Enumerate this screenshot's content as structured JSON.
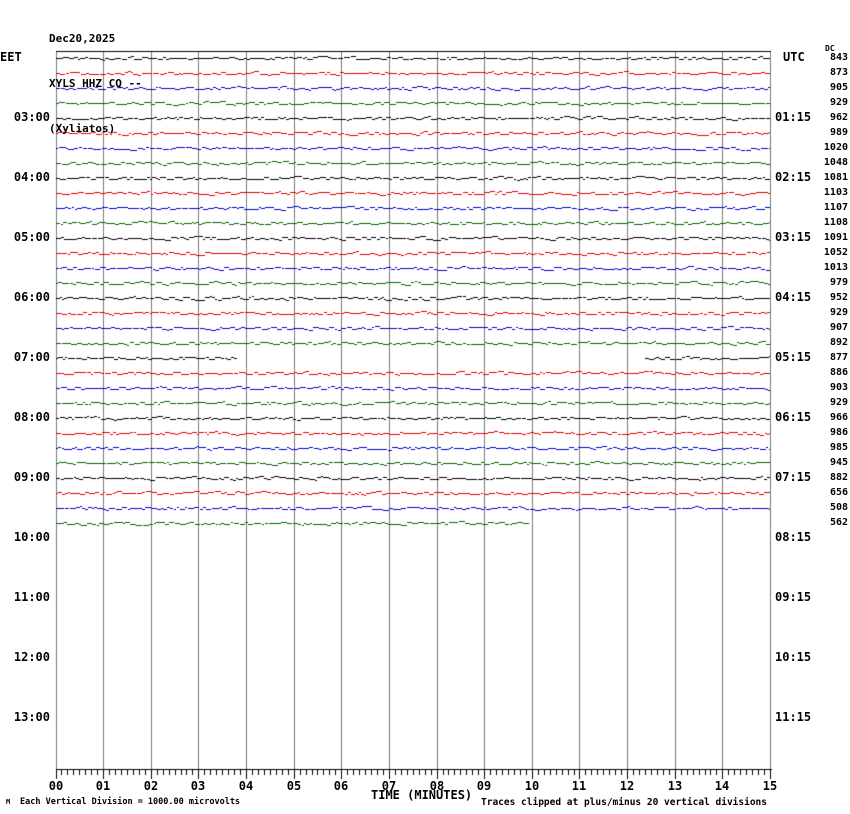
{
  "title": {
    "line1": "Dec20,2025",
    "line2": "XYLS HHZ CQ --",
    "line3": "(Xyliatos)"
  },
  "axes": {
    "left_timezone_label": "EET",
    "right_timezone_label": "UTC",
    "dc_header": "DC",
    "x_axis_label": "TIME (MINUTES)",
    "x_tick_labels": [
      "00",
      "01",
      "02",
      "03",
      "04",
      "05",
      "06",
      "07",
      "08",
      "09",
      "10",
      "11",
      "12",
      "13",
      "14",
      "15"
    ]
  },
  "left_time_labels": [
    {
      "text": "03:00",
      "row": 4
    },
    {
      "text": "04:00",
      "row": 8
    },
    {
      "text": "05:00",
      "row": 12
    },
    {
      "text": "06:00",
      "row": 16
    },
    {
      "text": "07:00",
      "row": 20
    },
    {
      "text": "08:00",
      "row": 24
    },
    {
      "text": "09:00",
      "row": 28
    },
    {
      "text": "10:00",
      "row": 32
    },
    {
      "text": "11:00",
      "row": 36
    },
    {
      "text": "12:00",
      "row": 40
    },
    {
      "text": "13:00",
      "row": 44
    }
  ],
  "right_time_labels": [
    {
      "text": "01:15",
      "row": 4
    },
    {
      "text": "02:15",
      "row": 8
    },
    {
      "text": "03:15",
      "row": 12
    },
    {
      "text": "04:15",
      "row": 16
    },
    {
      "text": "05:15",
      "row": 20
    },
    {
      "text": "06:15",
      "row": 24
    },
    {
      "text": "07:15",
      "row": 28
    },
    {
      "text": "08:15",
      "row": 32
    },
    {
      "text": "09:15",
      "row": 36
    },
    {
      "text": "10:15",
      "row": 40
    },
    {
      "text": "11:15",
      "row": 44
    }
  ],
  "footer": {
    "corner_mark": "M",
    "scale_note": "Each Vertical Division = 1000.00 microvolts",
    "clip_note": "Traces clipped at plus/minus 20 vertical divisions"
  },
  "colors": {
    "trace_cycle": {
      "black": "#000000",
      "red": "#e00000",
      "blue": "#0000cc",
      "green": "#006600"
    },
    "grid": "#7b7b7b",
    "axis": "#000000",
    "background": "#ffffff"
  },
  "chart_data": {
    "type": "line",
    "subtype": "helicorder-seismogram",
    "date": "Dec20,2025",
    "station": "XYLS HHZ CQ --",
    "station_name": "(Xyliatos)",
    "xlabel": "TIME (MINUTES)",
    "x_range_minutes": [
      0,
      15
    ],
    "minutes_per_row": 15,
    "minor_ticks_per_minute": 8,
    "left_axis": "EET",
    "right_axis": "UTC",
    "clip_divisions": 20,
    "microvolts_per_division": 1000.0,
    "rows": [
      {
        "color": "black",
        "dc": 843,
        "segments": [
          [
            0,
            15
          ]
        ]
      },
      {
        "color": "red",
        "dc": 873,
        "segments": [
          [
            0,
            15
          ]
        ]
      },
      {
        "color": "blue",
        "dc": 905,
        "segments": [
          [
            0,
            15
          ]
        ]
      },
      {
        "color": "green",
        "dc": 929,
        "segments": [
          [
            0,
            15
          ]
        ]
      },
      {
        "color": "black",
        "dc": 962,
        "segments": [
          [
            0,
            15
          ]
        ]
      },
      {
        "color": "red",
        "dc": 989,
        "segments": [
          [
            0,
            15
          ]
        ]
      },
      {
        "color": "blue",
        "dc": 1020,
        "segments": [
          [
            0,
            15
          ]
        ]
      },
      {
        "color": "green",
        "dc": 1048,
        "segments": [
          [
            0,
            15
          ]
        ]
      },
      {
        "color": "black",
        "dc": 1081,
        "segments": [
          [
            0,
            15
          ]
        ]
      },
      {
        "color": "red",
        "dc": 1103,
        "segments": [
          [
            0,
            15
          ]
        ]
      },
      {
        "color": "blue",
        "dc": 1107,
        "segments": [
          [
            0,
            15
          ]
        ]
      },
      {
        "color": "green",
        "dc": 1108,
        "segments": [
          [
            0,
            15
          ]
        ]
      },
      {
        "color": "black",
        "dc": 1091,
        "segments": [
          [
            0,
            15
          ]
        ]
      },
      {
        "color": "red",
        "dc": 1052,
        "segments": [
          [
            0,
            15
          ]
        ]
      },
      {
        "color": "blue",
        "dc": 1013,
        "segments": [
          [
            0,
            15
          ]
        ]
      },
      {
        "color": "green",
        "dc": 979,
        "segments": [
          [
            0,
            15
          ]
        ]
      },
      {
        "color": "black",
        "dc": 952,
        "segments": [
          [
            0,
            15
          ]
        ]
      },
      {
        "color": "red",
        "dc": 929,
        "segments": [
          [
            0,
            15
          ]
        ]
      },
      {
        "color": "blue",
        "dc": 907,
        "segments": [
          [
            0,
            15
          ]
        ]
      },
      {
        "color": "green",
        "dc": 892,
        "segments": [
          [
            0,
            15
          ]
        ]
      },
      {
        "color": "black",
        "dc": 877,
        "segments": [
          [
            0,
            3.81
          ],
          [
            12.37,
            15
          ]
        ]
      },
      {
        "color": "red",
        "dc": 886,
        "segments": [
          [
            0,
            15
          ]
        ]
      },
      {
        "color": "blue",
        "dc": 903,
        "segments": [
          [
            0,
            15
          ]
        ]
      },
      {
        "color": "green",
        "dc": 929,
        "segments": [
          [
            0,
            15
          ]
        ]
      },
      {
        "color": "black",
        "dc": 966,
        "segments": [
          [
            0,
            15
          ]
        ]
      },
      {
        "color": "red",
        "dc": 986,
        "segments": [
          [
            0,
            15
          ]
        ]
      },
      {
        "color": "blue",
        "dc": 985,
        "segments": [
          [
            0,
            15
          ]
        ]
      },
      {
        "color": "green",
        "dc": 945,
        "segments": [
          [
            0,
            15
          ]
        ]
      },
      {
        "color": "black",
        "dc": 882,
        "segments": [
          [
            0,
            15
          ]
        ]
      },
      {
        "color": "red",
        "dc": 656,
        "segments": [
          [
            0,
            15
          ]
        ]
      },
      {
        "color": "blue",
        "dc": 508,
        "segments": [
          [
            0,
            15
          ]
        ]
      },
      {
        "color": "green",
        "dc": 562,
        "segments": [
          [
            0,
            9.95
          ]
        ]
      }
    ]
  }
}
